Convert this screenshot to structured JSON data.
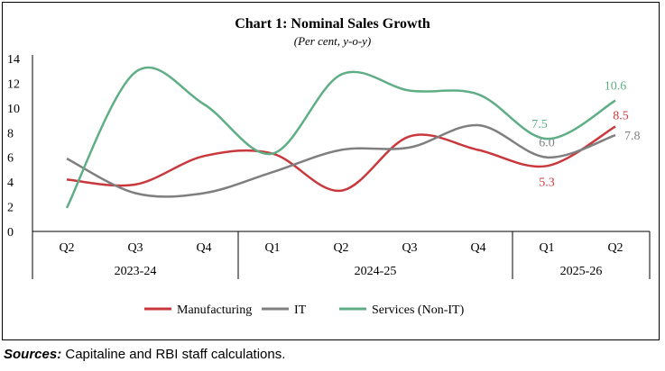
{
  "chart_data": {
    "type": "line",
    "title": "Chart 1: Nominal Sales Growth",
    "subtitle": "(Per cent, y-o-y)",
    "categories": [
      "Q2",
      "Q3",
      "Q4",
      "Q1",
      "Q2",
      "Q3",
      "Q4",
      "Q1",
      "Q2"
    ],
    "groups": [
      {
        "label": "2023-24",
        "count": 3
      },
      {
        "label": "2024-25",
        "count": 4
      },
      {
        "label": "2025-26",
        "count": 2
      }
    ],
    "ylim": [
      0,
      14
    ],
    "yticks": [
      "0",
      "2",
      "4",
      "6",
      "8",
      "10",
      "12",
      "14"
    ],
    "grid": false,
    "legend_placement": "bottom",
    "series": [
      {
        "name": "Manufacturing",
        "color": "#c8383c",
        "values": [
          4.2,
          3.8,
          6.1,
          6.3,
          3.3,
          7.7,
          6.6,
          5.3,
          8.5
        ],
        "labels": {
          "7": "5.3",
          "8": "8.5"
        }
      },
      {
        "name": "IT",
        "color": "#7f7f7f",
        "values": [
          5.9,
          3.1,
          3.1,
          4.8,
          6.6,
          6.8,
          8.6,
          6.0,
          7.8
        ],
        "labels": {
          "7": "6.0",
          "8": "7.8"
        }
      },
      {
        "name": "Services (Non-IT)",
        "color": "#5fae85",
        "values": [
          1.9,
          12.9,
          10.3,
          6.3,
          12.7,
          11.4,
          11.1,
          7.5,
          10.6
        ],
        "labels": {
          "7": "7.5",
          "8": "10.6"
        }
      }
    ]
  },
  "source": {
    "label": "Sources:",
    "text": " Capitaline and RBI staff calculations."
  }
}
